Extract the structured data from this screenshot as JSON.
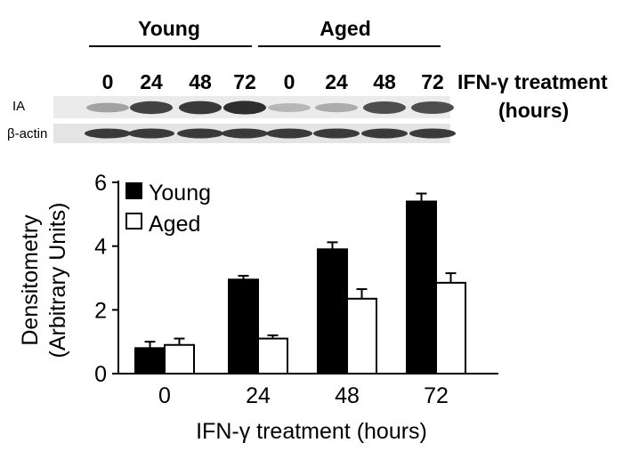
{
  "blot": {
    "groups": [
      {
        "label": "Young",
        "lanes": [
          "0",
          "24",
          "48",
          "72"
        ]
      },
      {
        "label": "Aged",
        "lanes": [
          "0",
          "24",
          "48",
          "72"
        ]
      }
    ],
    "treatment_label_line1": "IFN-γ treatment",
    "treatment_label_line2": "(hours)",
    "row_labels": [
      "IA",
      "β-actin"
    ],
    "ia_band_intensity": {
      "Young": [
        0.35,
        0.8,
        0.85,
        0.9
      ],
      "Aged": [
        0.25,
        0.3,
        0.75,
        0.75
      ]
    },
    "actin_band_intensity": {
      "Young": [
        0.85,
        0.85,
        0.85,
        0.85
      ],
      "Aged": [
        0.85,
        0.85,
        0.85,
        0.85
      ]
    }
  },
  "chart_data": {
    "type": "bar",
    "categories": [
      "0",
      "24",
      "48",
      "72"
    ],
    "series": [
      {
        "name": "Young",
        "color": "#000000",
        "values": [
          0.8,
          2.95,
          3.9,
          5.4
        ],
        "errors": [
          0.2,
          0.12,
          0.22,
          0.25
        ]
      },
      {
        "name": "Aged",
        "color": "#ffffff",
        "values": [
          0.9,
          1.1,
          2.35,
          2.85
        ],
        "errors": [
          0.2,
          0.1,
          0.3,
          0.3
        ]
      }
    ],
    "ylabel_line1": "Densitometry",
    "ylabel_line2": "(Arbitrary Units)",
    "xlabel": "IFN-γ treatment (hours)",
    "ylim": [
      0,
      6
    ],
    "yticks": [
      0,
      2,
      4,
      6
    ],
    "legend_position": "top-left",
    "grid": false
  }
}
